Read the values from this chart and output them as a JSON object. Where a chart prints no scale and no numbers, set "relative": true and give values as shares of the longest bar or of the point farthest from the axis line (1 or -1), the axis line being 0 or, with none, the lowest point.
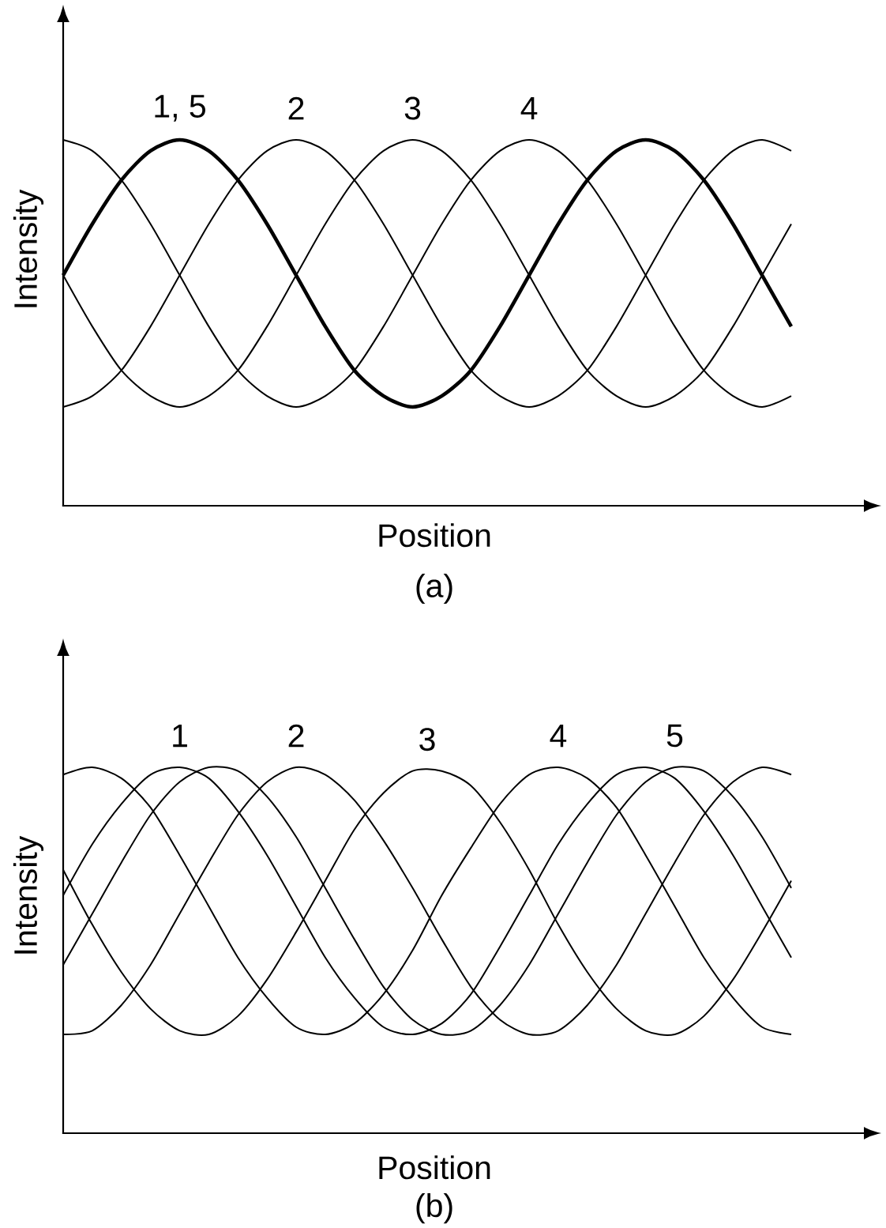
{
  "chart_data": [
    {
      "type": "line",
      "title": "(a)",
      "xlabel": "Position",
      "ylabel": "Intensity",
      "relative": true,
      "categories": [
        null,
        null,
        null,
        null,
        null,
        null,
        null,
        null,
        null,
        null,
        null,
        null,
        null,
        null,
        null,
        null,
        null,
        null,
        null,
        null,
        null,
        null,
        null,
        null,
        null,
        null
      ],
      "series": [
        {
          "name": "1, 5",
          "color": "#000000",
          "values": [
            0.63,
            0.77,
            0.89,
            0.97,
            1.0,
            0.97,
            0.89,
            0.77,
            0.63,
            0.49,
            0.37,
            0.3,
            0.27,
            0.3,
            0.37,
            0.49,
            0.63,
            0.77,
            0.89,
            0.97,
            1.0,
            0.97,
            0.89,
            0.77,
            0.63,
            0.49
          ]
        },
        {
          "name": "2",
          "color": "#000000",
          "values": [
            0.27,
            0.3,
            0.37,
            0.49,
            0.63,
            0.77,
            0.89,
            0.97,
            1.0,
            0.97,
            0.89,
            0.77,
            0.63,
            0.49,
            0.37,
            0.3,
            0.27,
            0.3,
            0.37,
            0.49,
            0.63,
            0.77,
            0.89,
            0.97,
            1.0,
            0.97
          ]
        },
        {
          "name": "3",
          "color": "#000000",
          "values": [
            0.63,
            0.49,
            0.37,
            0.3,
            0.27,
            0.3,
            0.37,
            0.49,
            0.63,
            0.77,
            0.89,
            0.97,
            1.0,
            0.97,
            0.89,
            0.77,
            0.63,
            0.49,
            0.37,
            0.3,
            0.27,
            0.3,
            0.37,
            0.49,
            0.63,
            0.77
          ]
        },
        {
          "name": "4",
          "color": "#000000",
          "values": [
            1.0,
            0.97,
            0.89,
            0.77,
            0.63,
            0.49,
            0.37,
            0.3,
            0.27,
            0.3,
            0.37,
            0.49,
            0.63,
            0.77,
            0.89,
            0.97,
            1.0,
            0.97,
            0.89,
            0.77,
            0.63,
            0.49,
            0.37,
            0.3,
            0.27,
            0.3
          ]
        }
      ]
    },
    {
      "type": "line",
      "title": "(b)",
      "xlabel": "Position",
      "ylabel": "Intensity",
      "relative": true,
      "categories": [
        null,
        null,
        null,
        null,
        null,
        null,
        null,
        null,
        null,
        null,
        null,
        null,
        null,
        null,
        null,
        null,
        null,
        null,
        null,
        null,
        null,
        null,
        null,
        null,
        null,
        null
      ],
      "series": [
        {
          "name": "1",
          "color": "#000000",
          "values": [
            0.65,
            0.79,
            0.9,
            0.98,
            1.0,
            0.97,
            0.88,
            0.76,
            0.62,
            0.48,
            0.37,
            0.29,
            0.27,
            0.3,
            0.38,
            0.51,
            0.65,
            0.79,
            0.9,
            0.98,
            1.0,
            0.97,
            0.88,
            0.76,
            0.62,
            0.48
          ]
        },
        {
          "name": "2",
          "color": "#000000",
          "values": [
            0.27,
            0.28,
            0.35,
            0.46,
            0.6,
            0.74,
            0.87,
            0.96,
            1.0,
            0.98,
            0.91,
            0.8,
            0.67,
            0.53,
            0.4,
            0.31,
            0.27,
            0.28,
            0.35,
            0.46,
            0.6,
            0.74,
            0.87,
            0.96,
            1.0,
            0.98
          ]
        },
        {
          "name": "3",
          "color": "#000000",
          "values": [
            0.72,
            0.57,
            0.44,
            0.34,
            0.28,
            0.27,
            0.32,
            0.42,
            0.55,
            0.69,
            0.83,
            0.93,
            0.99,
            0.99,
            0.95,
            0.85,
            0.72,
            0.57,
            0.44,
            0.34,
            0.28,
            0.27,
            0.32,
            0.42,
            0.55,
            0.69
          ]
        },
        {
          "name": "4",
          "color": "#000000",
          "values": [
            0.98,
            1.0,
            0.97,
            0.89,
            0.76,
            0.62,
            0.48,
            0.37,
            0.29,
            0.27,
            0.3,
            0.38,
            0.5,
            0.65,
            0.78,
            0.9,
            0.98,
            1.0,
            0.97,
            0.89,
            0.76,
            0.62,
            0.48,
            0.37,
            0.29,
            0.27
          ]
        },
        {
          "name": "5",
          "color": "#000000",
          "values": [
            0.46,
            0.6,
            0.74,
            0.87,
            0.96,
            1.0,
            0.99,
            0.92,
            0.81,
            0.67,
            0.53,
            0.4,
            0.31,
            0.27,
            0.28,
            0.35,
            0.46,
            0.6,
            0.74,
            0.87,
            0.96,
            1.0,
            0.99,
            0.92,
            0.81,
            0.67
          ]
        }
      ]
    }
  ]
}
